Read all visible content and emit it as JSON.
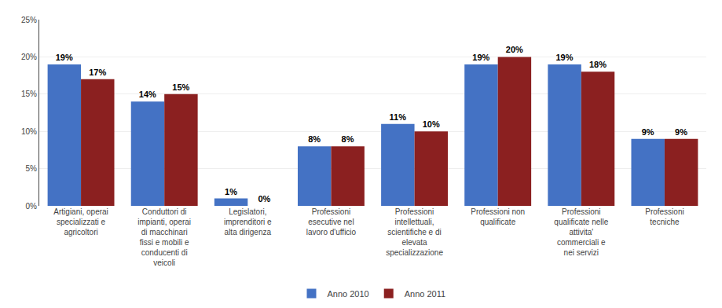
{
  "chart_data": {
    "type": "bar",
    "categories": [
      "Artigiani, operai\nspecializzati e\nagricoltori",
      "Conduttori di\nimpianti, operai\ndi macchinari\nfissi e mobili e\nconducenti di\nveicoli",
      "Legislatori,\nimprenditori e\nalta dirigenza",
      "Professioni\nesecutive nel\nlavoro d'ufficio",
      "Professioni\nintellettuali,\nscientifiche e di\nelevata\nspecializzazione",
      "Professioni non\nqualificate",
      "Professioni\nqualificate nelle\nattivita'\ncommerciali e\nnei servizi",
      "Professioni\ntecniche"
    ],
    "series": [
      {
        "name": "Anno 2010",
        "color": "#4472C4",
        "values": [
          19,
          14,
          1,
          8,
          11,
          19,
          19,
          9
        ],
        "value_labels": [
          "19%",
          "14%",
          "1%",
          "8%",
          "11%",
          "19%",
          "19%",
          "9%"
        ]
      },
      {
        "name": "Anno 2011",
        "color": "#8B2020",
        "values": [
          17,
          15,
          0,
          8,
          10,
          20,
          18,
          9
        ],
        "value_labels": [
          "17%",
          "15%",
          "0%",
          "8%",
          "10%",
          "20%",
          "18%",
          "9%"
        ]
      }
    ],
    "ylim": [
      0,
      25
    ],
    "yticks": [
      {
        "value": 0,
        "label": "0%"
      },
      {
        "value": 5,
        "label": "5%"
      },
      {
        "value": 10,
        "label": "10%"
      },
      {
        "value": 15,
        "label": "15%"
      },
      {
        "value": 20,
        "label": "20%"
      },
      {
        "value": 25,
        "label": "25%"
      }
    ],
    "grid": true,
    "legend": "bottom",
    "data_labels": true
  }
}
